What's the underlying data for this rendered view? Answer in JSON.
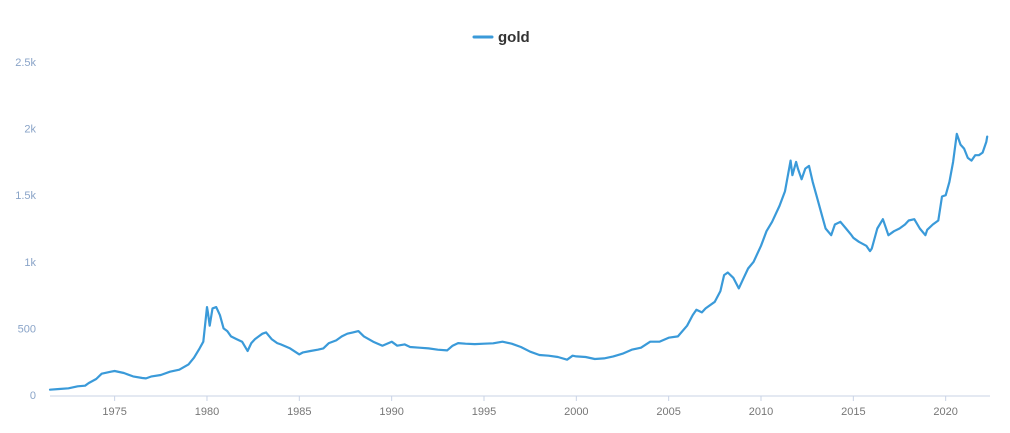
{
  "chart_data": {
    "type": "line",
    "title": "",
    "xlabel": "",
    "ylabel": "",
    "legend": {
      "placement": "top-center"
    },
    "grid": false,
    "xlim": [
      1971.5,
      2022.4
    ],
    "ylim": [
      0,
      2500
    ],
    "x_ticks": [
      1975,
      1980,
      1985,
      1990,
      1995,
      2000,
      2005,
      2010,
      2015,
      2020
    ],
    "y_ticks": [
      0,
      500,
      1000,
      1500,
      2000,
      2500
    ],
    "y_tick_labels": [
      "0",
      "500",
      "1k",
      "1.5k",
      "2k",
      "2.5k"
    ],
    "series": [
      {
        "name": "gold",
        "color": "#3a9ad9",
        "x": [
          1971.5,
          1972.0,
          1972.5,
          1973.0,
          1973.4,
          1973.6,
          1974.0,
          1974.3,
          1974.8,
          1975.0,
          1975.5,
          1976.0,
          1976.5,
          1976.7,
          1977.0,
          1977.5,
          1978.0,
          1978.5,
          1979.0,
          1979.3,
          1979.6,
          1979.8,
          1980.0,
          1980.05,
          1980.15,
          1980.3,
          1980.5,
          1980.7,
          1980.9,
          1981.1,
          1981.3,
          1981.6,
          1981.9,
          1982.2,
          1982.4,
          1982.6,
          1982.8,
          1983.0,
          1983.2,
          1983.5,
          1983.8,
          1984.0,
          1984.5,
          1985.0,
          1985.2,
          1985.6,
          1986.0,
          1986.3,
          1986.6,
          1987.0,
          1987.3,
          1987.6,
          1987.9,
          1988.2,
          1988.5,
          1989.0,
          1989.5,
          1990.0,
          1990.3,
          1990.7,
          1991.0,
          1991.5,
          1992.0,
          1992.5,
          1993.0,
          1993.3,
          1993.6,
          1994.0,
          1994.5,
          1995.0,
          1995.5,
          1996.0,
          1996.5,
          1997.0,
          1997.5,
          1998.0,
          1998.5,
          1999.0,
          1999.5,
          1999.8,
          2000.0,
          2000.5,
          2001.0,
          2001.5,
          2002.0,
          2002.5,
          2003.0,
          2003.5,
          2004.0,
          2004.5,
          2005.0,
          2005.5,
          2006.0,
          2006.3,
          2006.5,
          2006.8,
          2007.0,
          2007.5,
          2007.8,
          2008.0,
          2008.2,
          2008.5,
          2008.8,
          2009.0,
          2009.3,
          2009.6,
          2010.0,
          2010.3,
          2010.6,
          2011.0,
          2011.3,
          2011.6,
          2011.7,
          2011.9,
          2012.0,
          2012.2,
          2012.4,
          2012.6,
          2012.8,
          2013.0,
          2013.3,
          2013.5,
          2013.8,
          2014.0,
          2014.3,
          2014.6,
          2014.9,
          2015.0,
          2015.3,
          2015.7,
          2015.9,
          2016.0,
          2016.3,
          2016.6,
          2016.9,
          2017.2,
          2017.5,
          2017.8,
          2018.0,
          2018.3,
          2018.6,
          2018.9,
          2019.0,
          2019.3,
          2019.6,
          2019.8,
          2020.0,
          2020.2,
          2020.4,
          2020.6,
          2020.8,
          2021.0,
          2021.2,
          2021.4,
          2021.6,
          2021.8,
          2022.0,
          2022.2,
          2022.25
        ],
        "values": [
          40,
          45,
          50,
          65,
          70,
          90,
          120,
          160,
          175,
          180,
          165,
          140,
          128,
          125,
          140,
          150,
          175,
          190,
          230,
          280,
          350,
          400,
          660,
          620,
          520,
          650,
          660,
          600,
          500,
          480,
          440,
          420,
          400,
          330,
          390,
          420,
          440,
          460,
          470,
          420,
          390,
          380,
          350,
          305,
          320,
          330,
          340,
          350,
          390,
          410,
          440,
          460,
          470,
          480,
          440,
          400,
          370,
          400,
          370,
          380,
          360,
          355,
          350,
          340,
          335,
          370,
          390,
          385,
          382,
          385,
          388,
          400,
          385,
          360,
          325,
          300,
          295,
          285,
          265,
          295,
          290,
          285,
          270,
          275,
          290,
          310,
          340,
          355,
          400,
          400,
          430,
          440,
          520,
          600,
          640,
          620,
          650,
          700,
          780,
          900,
          920,
          880,
          800,
          860,
          950,
          1000,
          1120,
          1230,
          1300,
          1420,
          1530,
          1760,
          1650,
          1750,
          1700,
          1620,
          1700,
          1720,
          1600,
          1500,
          1350,
          1250,
          1200,
          1280,
          1300,
          1250,
          1200,
          1180,
          1150,
          1120,
          1080,
          1100,
          1250,
          1320,
          1200,
          1230,
          1250,
          1280,
          1310,
          1320,
          1250,
          1200,
          1240,
          1280,
          1310,
          1490,
          1500,
          1600,
          1750,
          1960,
          1880,
          1850,
          1780,
          1760,
          1800,
          1800,
          1820,
          1900,
          1940
        ]
      }
    ]
  }
}
